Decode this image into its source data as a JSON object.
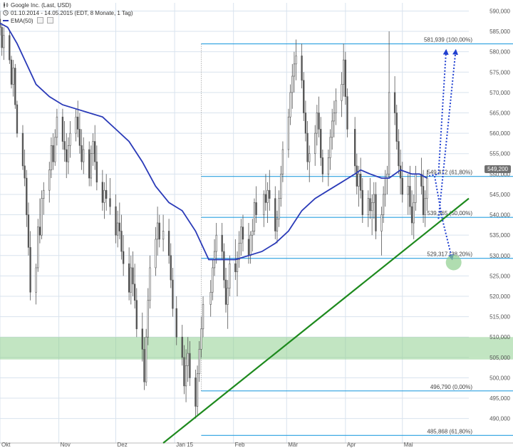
{
  "header": {
    "instrument": "Google Inc. (Last, USD)",
    "period": "01.10.2014 - 14.05.2015 (EDT, 8 Monate, 1 Tag)",
    "indicator": "EMA(50)"
  },
  "last_price_label": "549,200",
  "colors": {
    "candle": "#555555",
    "ema": "#2a3ab8",
    "fib": "#2aa0e0",
    "trend": "#1e8a1e",
    "zone": "#8fcf8f",
    "arrow": "#1f3fd0",
    "grid": "#d9e3ee",
    "axis_text": "#555555"
  },
  "chart_data": {
    "type": "candlestick",
    "title": "Google Inc. (Last, USD)",
    "xlabel": "",
    "ylabel": "",
    "ylim": [
      484,
      592
    ],
    "x_range": [
      "2014-10-01",
      "2015-06-05"
    ],
    "y_ticks": [
      "590,000",
      "585,000",
      "580,000",
      "575,000",
      "570,000",
      "565,000",
      "560,000",
      "555,000",
      "550,000",
      "545,000",
      "540,000",
      "535,000",
      "530,000",
      "525,000",
      "520,000",
      "515,000",
      "510,000",
      "505,000",
      "500,000",
      "495,000",
      "490,000"
    ],
    "y_tick_values": [
      590,
      585,
      580,
      575,
      570,
      565,
      560,
      555,
      550,
      545,
      540,
      535,
      530,
      525,
      520,
      515,
      510,
      505,
      500,
      495,
      490
    ],
    "x_ticks": [
      {
        "label": "Okt",
        "date": "2014-10-01"
      },
      {
        "label": "Nov",
        "date": "2014-11-01"
      },
      {
        "label": "Dez",
        "date": "2014-12-01"
      },
      {
        "label": "Jan 15",
        "date": "2015-01-01"
      },
      {
        "label": "Feb",
        "date": "2015-02-01"
      },
      {
        "label": "Mär",
        "date": "2015-03-01"
      },
      {
        "label": "Apr",
        "date": "2015-04-01"
      },
      {
        "label": "Mai",
        "date": "2015-05-01"
      }
    ],
    "ema_path": [
      [
        "2014-10-01",
        587
      ],
      [
        "2014-10-05",
        586
      ],
      [
        "2014-10-10",
        582
      ],
      [
        "2014-10-15",
        577
      ],
      [
        "2014-10-20",
        572
      ],
      [
        "2014-10-27",
        569
      ],
      [
        "2014-11-03",
        567
      ],
      [
        "2014-11-10",
        566
      ],
      [
        "2014-11-17",
        565
      ],
      [
        "2014-11-24",
        564
      ],
      [
        "2014-12-01",
        561
      ],
      [
        "2014-12-08",
        558
      ],
      [
        "2014-12-15",
        553
      ],
      [
        "2014-12-22",
        547
      ],
      [
        "2014-12-29",
        543
      ],
      [
        "2015-01-05",
        541
      ],
      [
        "2015-01-12",
        536
      ],
      [
        "2015-01-19",
        529
      ],
      [
        "2015-01-26",
        529
      ],
      [
        "2015-02-02",
        529
      ],
      [
        "2015-02-09",
        530
      ],
      [
        "2015-02-16",
        531
      ],
      [
        "2015-02-23",
        533
      ],
      [
        "2015-03-02",
        536
      ],
      [
        "2015-03-09",
        541
      ],
      [
        "2015-03-16",
        544
      ],
      [
        "2015-03-23",
        546
      ],
      [
        "2015-03-30",
        548
      ],
      [
        "2015-04-06",
        550
      ],
      [
        "2015-04-09",
        551
      ],
      [
        "2015-04-14",
        550
      ],
      [
        "2015-04-20",
        549
      ],
      [
        "2015-04-24",
        549
      ],
      [
        "2015-04-30",
        551
      ],
      [
        "2015-05-06",
        550
      ],
      [
        "2015-05-10",
        550
      ],
      [
        "2015-05-14",
        549
      ]
    ],
    "fib_levels": [
      {
        "label": "581,939 (100,00%)",
        "value": 581.939
      },
      {
        "label": "549,412 (61,80%)",
        "value": 549.412
      },
      {
        "label": "539,365 (50,00%)",
        "value": 539.365
      },
      {
        "label": "529,317 (38,20%)",
        "value": 529.317
      },
      {
        "label": "496,790 (0,00%)",
        "value": 496.79
      },
      {
        "label": "485,868 (61,80%)",
        "value": 485.868
      }
    ],
    "fib_start_date": "2015-01-15",
    "support_zone": {
      "from": 504.5,
      "to": 510
    },
    "trendline": [
      [
        "2014-12-26",
        484
      ],
      [
        "2015-06-05",
        544
      ]
    ],
    "ohlc": [
      [
        "2014-10-01",
        588,
        590,
        584,
        586
      ],
      [
        "2014-10-02",
        586,
        587,
        579,
        581
      ],
      [
        "2014-10-03",
        581,
        586,
        578,
        584
      ],
      [
        "2014-10-06",
        584,
        585,
        577,
        578
      ],
      [
        "2014-10-07",
        578,
        579,
        571,
        572
      ],
      [
        "2014-10-08",
        572,
        578,
        569,
        576
      ],
      [
        "2014-10-09",
        576,
        577,
        566,
        567
      ],
      [
        "2014-10-10",
        567,
        568,
        559,
        560
      ],
      [
        "2014-10-13",
        560,
        562,
        551,
        552
      ],
      [
        "2014-10-14",
        552,
        556,
        547,
        549
      ],
      [
        "2014-10-15",
        549,
        551,
        537,
        540
      ],
      [
        "2014-10-16",
        540,
        543,
        530,
        532
      ],
      [
        "2014-10-17",
        532,
        536,
        519,
        521
      ],
      [
        "2014-10-20",
        521,
        528,
        518,
        527
      ],
      [
        "2014-10-21",
        527,
        539,
        526,
        537
      ],
      [
        "2014-10-22",
        537,
        544,
        533,
        535
      ],
      [
        "2014-10-23",
        535,
        546,
        534,
        544
      ],
      [
        "2014-10-24",
        544,
        548,
        540,
        546
      ],
      [
        "2014-10-27",
        546,
        553,
        543,
        551
      ],
      [
        "2014-10-28",
        551,
        559,
        549,
        557
      ],
      [
        "2014-10-29",
        557,
        560,
        551,
        553
      ],
      [
        "2014-10-30",
        553,
        561,
        552,
        559
      ],
      [
        "2014-10-31",
        559,
        566,
        557,
        564
      ],
      [
        "2014-11-03",
        564,
        566,
        556,
        558
      ],
      [
        "2014-11-04",
        558,
        563,
        553,
        556
      ],
      [
        "2014-11-05",
        556,
        560,
        549,
        553
      ],
      [
        "2014-11-06",
        553,
        559,
        550,
        557
      ],
      [
        "2014-11-07",
        557,
        563,
        554,
        560
      ],
      [
        "2014-11-10",
        560,
        566,
        558,
        564
      ],
      [
        "2014-11-11",
        564,
        568,
        559,
        561
      ],
      [
        "2014-11-12",
        561,
        565,
        555,
        557
      ],
      [
        "2014-11-13",
        557,
        561,
        551,
        553
      ],
      [
        "2014-11-14",
        553,
        559,
        550,
        556
      ],
      [
        "2014-11-17",
        556,
        558,
        547,
        549
      ],
      [
        "2014-11-18",
        549,
        557,
        547,
        555
      ],
      [
        "2014-11-19",
        555,
        560,
        552,
        558
      ],
      [
        "2014-11-20",
        558,
        562,
        551,
        553
      ],
      [
        "2014-11-21",
        553,
        557,
        546,
        548
      ],
      [
        "2014-11-24",
        548,
        551,
        541,
        543
      ],
      [
        "2014-11-25",
        543,
        548,
        539,
        546
      ],
      [
        "2014-11-26",
        546,
        550,
        541,
        544
      ],
      [
        "2014-11-28",
        544,
        549,
        540,
        542
      ],
      [
        "2014-12-01",
        542,
        545,
        533,
        535
      ],
      [
        "2014-12-02",
        535,
        541,
        532,
        538
      ],
      [
        "2014-12-03",
        538,
        543,
        534,
        536
      ],
      [
        "2014-12-04",
        536,
        540,
        529,
        531
      ],
      [
        "2014-12-05",
        531,
        535,
        525,
        528
      ],
      [
        "2014-12-08",
        528,
        532,
        519,
        521
      ],
      [
        "2014-12-09",
        521,
        530,
        518,
        527
      ],
      [
        "2014-12-10",
        527,
        531,
        520,
        523
      ],
      [
        "2014-12-11",
        523,
        528,
        517,
        519
      ],
      [
        "2014-12-12",
        519,
        522,
        510,
        512
      ],
      [
        "2014-12-15",
        512,
        516,
        504,
        507
      ],
      [
        "2014-12-16",
        507,
        510,
        497,
        499
      ],
      [
        "2014-12-17",
        499,
        512,
        498,
        510
      ],
      [
        "2014-12-18",
        510,
        522,
        508,
        519
      ],
      [
        "2014-12-19",
        519,
        530,
        517,
        527
      ],
      [
        "2014-12-22",
        527,
        537,
        525,
        534
      ],
      [
        "2014-12-23",
        534,
        542,
        530,
        538
      ],
      [
        "2014-12-24",
        538,
        540,
        532,
        534
      ],
      [
        "2014-12-26",
        534,
        540,
        531,
        536
      ],
      [
        "2014-12-29",
        536,
        539,
        528,
        530
      ],
      [
        "2014-12-30",
        530,
        533,
        522,
        524
      ],
      [
        "2014-12-31",
        524,
        527,
        515,
        517
      ],
      [
        "2015-01-02",
        517,
        520,
        508,
        510
      ],
      [
        "2015-01-05",
        510,
        513,
        503,
        505
      ],
      [
        "2015-01-06",
        505,
        508,
        496,
        498
      ],
      [
        "2015-01-07",
        498,
        507,
        494,
        503
      ],
      [
        "2015-01-08",
        503,
        510,
        499,
        506
      ],
      [
        "2015-01-09",
        506,
        509,
        498,
        500
      ],
      [
        "2015-01-12",
        500,
        502,
        490,
        493
      ],
      [
        "2015-01-13",
        493,
        503,
        491,
        501
      ],
      [
        "2015-01-14",
        501,
        509,
        499,
        507
      ],
      [
        "2015-01-15",
        507,
        515,
        505,
        512
      ],
      [
        "2015-01-16",
        512,
        520,
        510,
        518
      ],
      [
        "2015-01-20",
        518,
        524,
        515,
        521
      ],
      [
        "2015-01-21",
        521,
        529,
        519,
        527
      ],
      [
        "2015-01-22",
        527,
        534,
        525,
        531
      ],
      [
        "2015-01-23",
        531,
        538,
        528,
        535
      ],
      [
        "2015-01-26",
        535,
        538,
        529,
        531
      ],
      [
        "2015-01-27",
        531,
        533,
        522,
        524
      ],
      [
        "2015-01-28",
        524,
        527,
        516,
        518
      ],
      [
        "2015-01-29",
        518,
        524,
        512,
        522
      ],
      [
        "2015-01-30",
        522,
        530,
        520,
        528
      ],
      [
        "2015-02-02",
        528,
        534,
        524,
        526
      ],
      [
        "2015-02-03",
        526,
        531,
        520,
        529
      ],
      [
        "2015-02-04",
        529,
        536,
        527,
        533
      ],
      [
        "2015-02-05",
        533,
        539,
        530,
        537
      ],
      [
        "2015-02-06",
        537,
        540,
        531,
        534
      ],
      [
        "2015-02-09",
        534,
        538,
        528,
        530
      ],
      [
        "2015-02-10",
        530,
        536,
        528,
        535
      ],
      [
        "2015-02-11",
        535,
        539,
        531,
        536
      ],
      [
        "2015-02-12",
        536,
        544,
        535,
        543
      ],
      [
        "2015-02-13",
        543,
        547,
        538,
        540
      ],
      [
        "2015-02-17",
        540,
        546,
        537,
        545
      ],
      [
        "2015-02-18",
        545,
        550,
        541,
        543
      ],
      [
        "2015-02-19",
        543,
        548,
        538,
        546
      ],
      [
        "2015-02-20",
        546,
        551,
        541,
        544
      ],
      [
        "2015-02-23",
        544,
        547,
        534,
        536
      ],
      [
        "2015-02-24",
        536,
        541,
        533,
        539
      ],
      [
        "2015-02-25",
        539,
        546,
        537,
        544
      ],
      [
        "2015-02-26",
        544,
        552,
        542,
        550
      ],
      [
        "2015-02-27",
        550,
        558,
        548,
        556
      ],
      [
        "2015-03-02",
        556,
        566,
        554,
        564
      ],
      [
        "2015-03-03",
        564,
        572,
        562,
        570
      ],
      [
        "2015-03-04",
        570,
        577,
        566,
        574
      ],
      [
        "2015-03-05",
        574,
        580,
        570,
        577
      ],
      [
        "2015-03-06",
        577,
        583,
        573,
        579
      ],
      [
        "2015-03-09",
        579,
        582,
        571,
        573
      ],
      [
        "2015-03-10",
        573,
        575,
        563,
        565
      ],
      [
        "2015-03-11",
        565,
        568,
        558,
        560
      ],
      [
        "2015-03-12",
        560,
        563,
        551,
        553
      ],
      [
        "2015-03-13",
        553,
        557,
        548,
        555
      ],
      [
        "2015-03-16",
        555,
        562,
        552,
        560
      ],
      [
        "2015-03-17",
        560,
        567,
        557,
        565
      ],
      [
        "2015-03-18",
        565,
        569,
        559,
        561
      ],
      [
        "2015-03-19",
        561,
        564,
        552,
        554
      ],
      [
        "2015-03-20",
        554,
        556,
        548,
        550
      ],
      [
        "2015-03-23",
        550,
        556,
        547,
        554
      ],
      [
        "2015-03-24",
        554,
        561,
        551,
        559
      ],
      [
        "2015-03-25",
        559,
        566,
        556,
        563
      ],
      [
        "2015-03-26",
        563,
        568,
        559,
        565
      ],
      [
        "2015-03-27",
        565,
        571,
        562,
        568
      ],
      [
        "2015-03-30",
        568,
        575,
        564,
        572
      ],
      [
        "2015-03-31",
        572,
        582,
        569,
        578
      ],
      [
        "2015-04-01",
        578,
        580,
        567,
        569
      ],
      [
        "2015-04-02",
        569,
        571,
        559,
        561
      ],
      [
        "2015-04-06",
        561,
        564,
        550,
        552
      ],
      [
        "2015-04-07",
        552,
        555,
        545,
        547
      ],
      [
        "2015-04-08",
        547,
        552,
        542,
        550
      ],
      [
        "2015-04-09",
        550,
        554,
        544,
        546
      ],
      [
        "2015-04-10",
        546,
        549,
        538,
        540
      ],
      [
        "2015-04-13",
        540,
        546,
        537,
        544
      ],
      [
        "2015-04-14",
        544,
        549,
        539,
        541
      ],
      [
        "2015-04-15",
        541,
        545,
        535,
        543
      ],
      [
        "2015-04-16",
        543,
        548,
        539,
        545
      ],
      [
        "2015-04-17",
        545,
        548,
        534,
        536
      ],
      [
        "2015-04-20",
        536,
        542,
        530,
        540
      ],
      [
        "2015-04-21",
        540,
        547,
        538,
        545
      ],
      [
        "2015-04-22",
        545,
        551,
        542,
        549
      ],
      [
        "2015-04-23",
        549,
        552,
        545,
        550
      ],
      [
        "2015-04-24",
        550,
        585,
        549,
        570
      ],
      [
        "2015-04-27",
        570,
        574,
        562,
        565
      ],
      [
        "2015-04-28",
        565,
        567,
        556,
        558
      ],
      [
        "2015-04-29",
        558,
        561,
        550,
        552
      ],
      [
        "2015-04-30",
        552,
        556,
        545,
        549
      ],
      [
        "2015-05-01",
        549,
        553,
        543,
        545
      ],
      [
        "2015-05-04",
        545,
        550,
        540,
        547
      ],
      [
        "2015-05-05",
        547,
        552,
        540,
        542
      ],
      [
        "2015-05-06",
        542,
        546,
        535,
        538
      ],
      [
        "2015-05-07",
        538,
        545,
        534,
        543
      ],
      [
        "2015-05-08",
        543,
        552,
        541,
        550
      ],
      [
        "2015-05-11",
        550,
        554,
        545,
        547
      ],
      [
        "2015-05-12",
        547,
        551,
        538,
        540
      ],
      [
        "2015-05-13",
        540,
        546,
        537,
        544
      ],
      [
        "2015-05-14",
        544,
        551,
        541,
        549
      ]
    ],
    "projection_arrows": [
      [
        [
          "2015-05-15",
          549.5
        ],
        [
          "2015-05-20",
          550
        ],
        [
          "2015-05-24",
          580
        ]
      ],
      [
        [
          "2015-05-18",
          549.5
        ],
        [
          "2015-05-22",
          539
        ],
        [
          "2015-05-27",
          529.5
        ]
      ],
      [
        [
          "2015-05-20",
          539
        ],
        [
          "2015-05-29",
          580
        ]
      ]
    ],
    "target_marker": {
      "date": "2015-05-28",
      "value": 528.3
    }
  }
}
